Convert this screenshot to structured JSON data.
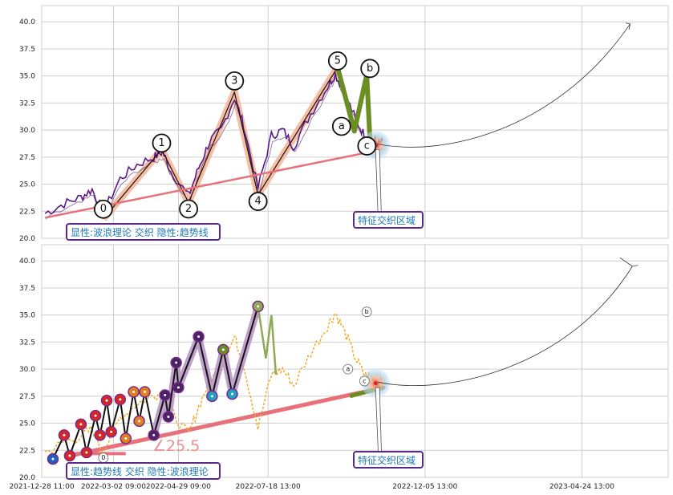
{
  "chart_data": [
    {
      "type": "line",
      "ylim": [
        20.0,
        41.5
      ],
      "yticks": [
        "20.0",
        "22.5",
        "25.0",
        "27.5",
        "30.0",
        "32.5",
        "35.0",
        "37.5",
        "40.0"
      ],
      "x_range_days": [
        0,
        559
      ],
      "annotations": {
        "bottom_box": "显性:波浪理论 交织 隐性:趋势线",
        "zone_box": "特征交织区域"
      },
      "wave_points": [
        {
          "label": "0",
          "x": 55,
          "y": 21.8
        },
        {
          "label": "1",
          "x": 107,
          "y": 28.2
        },
        {
          "label": "2",
          "x": 131,
          "y": 23.3
        },
        {
          "label": "3",
          "x": 172,
          "y": 33.5
        },
        {
          "label": "4",
          "x": 193,
          "y": 24.0
        },
        {
          "label": "5",
          "x": 264,
          "y": 35.8
        },
        {
          "label": "a",
          "x": 279,
          "y": 29.9
        },
        {
          "label": "b",
          "x": 290,
          "y": 35.1
        },
        {
          "label": "c",
          "x": 293,
          "y": 28.9
        }
      ],
      "trendline": [
        [
          3,
          21.9
        ],
        [
          294,
          28.0
        ]
      ]
    },
    {
      "type": "line",
      "ylim": [
        20.0,
        41.5
      ],
      "yticks": [
        "20.0",
        "22.5",
        "25.0",
        "27.5",
        "30.0",
        "32.5",
        "35.0",
        "37.5",
        "40.0"
      ],
      "xticks": [
        "2021-12-28 11:00",
        "2022-03-02 09:00",
        "2022-04-29 09:00",
        "2022-07-18 13:00",
        "2022-12-05 13:00",
        "2023-04-24 13:00"
      ],
      "x_range_days": [
        0,
        559
      ],
      "annotations": {
        "bottom_box": "显性:趋势线 交织 隐性:波浪理论",
        "zone_box": "特征交织区域",
        "angle_label": "∠25.5"
      },
      "wave_points": [
        {
          "label": "0",
          "x": 55,
          "y": 21.8
        },
        {
          "label": "a",
          "x": 279,
          "y": 30.0
        },
        {
          "label": "b",
          "x": 290,
          "y": 35.0
        },
        {
          "label": "c",
          "x": 293,
          "y": 28.9
        }
      ],
      "trendline": [
        [
          30,
          22.1
        ],
        [
          305,
          28.3
        ]
      ]
    }
  ]
}
